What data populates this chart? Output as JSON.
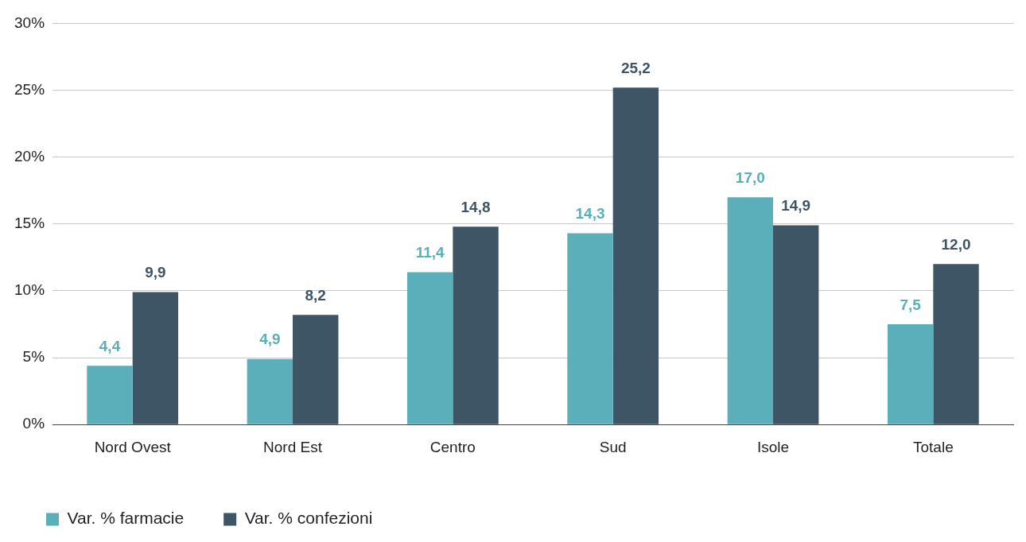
{
  "chart_data": {
    "type": "bar",
    "categories": [
      "Nord Ovest",
      "Nord Est",
      "Centro",
      "Sud",
      "Isole",
      "Totale"
    ],
    "series": [
      {
        "name": "Var. % farmacie",
        "color": "#5aafba",
        "values": [
          4.4,
          4.9,
          11.4,
          14.3,
          17.0,
          7.5
        ],
        "value_labels": [
          "4,4",
          "4,9",
          "11,4",
          "14,3",
          "17,0",
          "7,5"
        ]
      },
      {
        "name": "Var. % confezioni",
        "color": "#3e5566",
        "values": [
          9.9,
          8.2,
          14.8,
          25.2,
          14.9,
          12.0
        ],
        "value_labels": [
          "9,9",
          "8,2",
          "14,8",
          "25,2",
          "14,9",
          "12,0"
        ]
      }
    ],
    "ylim": [
      0,
      30
    ],
    "yticks": [
      {
        "value": 0,
        "label": "0%"
      },
      {
        "value": 5,
        "label": "5%"
      },
      {
        "value": 10,
        "label": "10%"
      },
      {
        "value": 15,
        "label": "15%"
      },
      {
        "value": 20,
        "label": "20%"
      },
      {
        "value": 25,
        "label": "25%"
      },
      {
        "value": 30,
        "label": "30%"
      }
    ],
    "grid": "y",
    "legend": "bottom left"
  }
}
